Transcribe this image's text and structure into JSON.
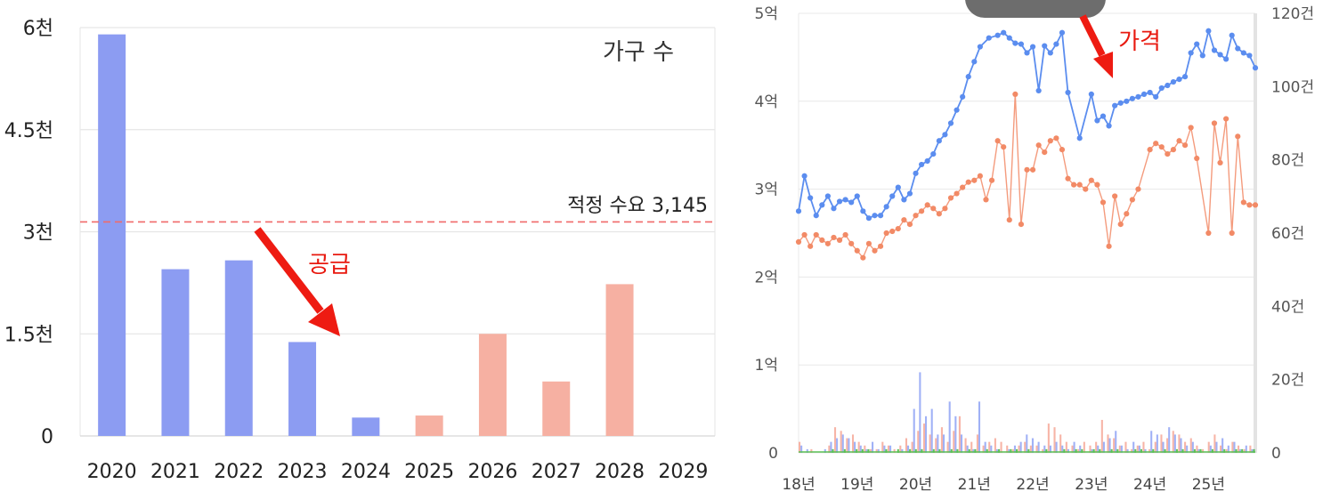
{
  "chart_data": [
    {
      "type": "bar",
      "title": "가구 수",
      "categories": [
        "2020",
        "2021",
        "2022",
        "2023",
        "2024",
        "2025",
        "2026",
        "2027",
        "2028",
        "2029"
      ],
      "values": [
        5900,
        2450,
        2580,
        1380,
        270,
        300,
        1500,
        800,
        2230,
        null
      ],
      "bar_colors": [
        "#8c9cf2",
        "#8c9cf2",
        "#8c9cf2",
        "#8c9cf2",
        "#8c9cf2",
        "#f6b0a2",
        "#f6b0a2",
        "#f6b0a2",
        "#f6b0a2",
        "#f6b0a2"
      ],
      "ylim": [
        0,
        6000
      ],
      "y_ticks": [
        {
          "value": 0,
          "label": "0"
        },
        {
          "value": 1500,
          "label": "1.5천"
        },
        {
          "value": 3000,
          "label": "3천"
        },
        {
          "value": 4500,
          "label": "4.5천"
        },
        {
          "value": 6000,
          "label": "6천"
        }
      ],
      "reference_line": {
        "value": 3145,
        "label": "적정 수요 3,145",
        "color": "#f06a6a"
      },
      "arrow_annotation": {
        "label": "공급",
        "color": "#e8190f"
      },
      "grid": true
    },
    {
      "type": "line",
      "x_ticks": [
        "18년",
        "19년",
        "20년",
        "21년",
        "22년",
        "23년",
        "24년",
        "25년"
      ],
      "y_left": {
        "ylim": [
          0,
          5
        ],
        "ticks": [
          {
            "value": 0,
            "label": "0"
          },
          {
            "value": 1,
            "label": "1억"
          },
          {
            "value": 2,
            "label": "2억"
          },
          {
            "value": 3,
            "label": "3억"
          },
          {
            "value": 4,
            "label": "4억"
          },
          {
            "value": 5,
            "label": "5억"
          }
        ]
      },
      "y_right": {
        "ylim": [
          0,
          120
        ],
        "ticks": [
          {
            "value": 0,
            "label": "0"
          },
          {
            "value": 20,
            "label": "20건"
          },
          {
            "value": 40,
            "label": "40건"
          },
          {
            "value": 60,
            "label": "60건"
          },
          {
            "value": 80,
            "label": "80건"
          },
          {
            "value": 100,
            "label": "100건"
          },
          {
            "value": 120,
            "label": "120건"
          }
        ]
      },
      "series": [
        {
          "color": "#5b8def",
          "axis": "left",
          "x": [
            2018.0,
            2018.1,
            2018.2,
            2018.3,
            2018.4,
            2018.5,
            2018.6,
            2018.7,
            2018.8,
            2018.9,
            2019.0,
            2019.1,
            2019.2,
            2019.3,
            2019.4,
            2019.5,
            2019.6,
            2019.7,
            2019.8,
            2019.9,
            2020.0,
            2020.1,
            2020.2,
            2020.3,
            2020.4,
            2020.5,
            2020.6,
            2020.7,
            2020.8,
            2020.9,
            2021.0,
            2021.1,
            2021.25,
            2021.4,
            2021.5,
            2021.6,
            2021.7,
            2021.8,
            2021.9,
            2022.0,
            2022.1,
            2022.2,
            2022.3,
            2022.4,
            2022.5,
            2022.6,
            2022.8,
            2023.0,
            2023.1,
            2023.2,
            2023.3,
            2023.4,
            2023.5,
            2023.6,
            2023.7,
            2023.8,
            2023.9,
            2024.0,
            2024.1,
            2024.2,
            2024.3,
            2024.4,
            2024.5,
            2024.6,
            2024.7,
            2024.8,
            2024.9,
            2025.0,
            2025.1,
            2025.2,
            2025.3,
            2025.4,
            2025.5,
            2025.6,
            2025.7,
            2025.8
          ],
          "values": [
            2.75,
            3.15,
            2.9,
            2.7,
            2.82,
            2.92,
            2.78,
            2.86,
            2.88,
            2.85,
            2.92,
            2.75,
            2.67,
            2.7,
            2.7,
            2.8,
            2.92,
            3.02,
            2.88,
            2.95,
            3.18,
            3.28,
            3.32,
            3.4,
            3.55,
            3.62,
            3.75,
            3.9,
            4.05,
            4.28,
            4.45,
            4.62,
            4.72,
            4.75,
            4.78,
            4.72,
            4.66,
            4.65,
            4.55,
            4.62,
            4.12,
            4.63,
            4.55,
            4.65,
            4.78,
            4.1,
            3.58,
            4.08,
            3.78,
            3.83,
            3.72,
            3.95,
            3.98,
            4.0,
            4.03,
            4.05,
            4.08,
            4.1,
            4.05,
            4.15,
            4.18,
            4.22,
            4.25,
            4.28,
            4.55,
            4.65,
            4.52,
            4.8,
            4.58,
            4.53,
            4.48,
            4.75,
            4.6,
            4.55,
            4.52,
            4.38
          ]
        },
        {
          "color": "#f28a66",
          "axis": "left",
          "x": [
            2018.0,
            2018.1,
            2018.2,
            2018.3,
            2018.4,
            2018.5,
            2018.6,
            2018.7,
            2018.8,
            2018.9,
            2019.0,
            2019.1,
            2019.2,
            2019.3,
            2019.4,
            2019.5,
            2019.6,
            2019.7,
            2019.8,
            2019.9,
            2020.0,
            2020.1,
            2020.2,
            2020.3,
            2020.4,
            2020.5,
            2020.6,
            2020.7,
            2020.8,
            2020.9,
            2021.0,
            2021.1,
            2021.2,
            2021.3,
            2021.4,
            2021.5,
            2021.6,
            2021.7,
            2021.8,
            2021.9,
            2022.0,
            2022.1,
            2022.2,
            2022.3,
            2022.4,
            2022.5,
            2022.6,
            2022.7,
            2022.8,
            2022.9,
            2023.0,
            2023.1,
            2023.2,
            2023.3,
            2023.4,
            2023.5,
            2023.6,
            2023.7,
            2023.8,
            2024.0,
            2024.1,
            2024.2,
            2024.3,
            2024.4,
            2024.5,
            2024.6,
            2024.7,
            2024.8,
            2025.0,
            2025.1,
            2025.2,
            2025.3,
            2025.4,
            2025.5,
            2025.6,
            2025.7,
            2025.8
          ],
          "values": [
            2.4,
            2.48,
            2.35,
            2.48,
            2.42,
            2.38,
            2.45,
            2.42,
            2.48,
            2.38,
            2.3,
            2.22,
            2.38,
            2.3,
            2.35,
            2.5,
            2.52,
            2.55,
            2.65,
            2.6,
            2.7,
            2.75,
            2.82,
            2.78,
            2.72,
            2.78,
            2.9,
            2.95,
            3.02,
            3.08,
            3.1,
            3.15,
            2.88,
            3.1,
            3.55,
            3.48,
            2.65,
            4.08,
            2.6,
            3.22,
            3.22,
            3.5,
            3.42,
            3.55,
            3.58,
            3.45,
            3.12,
            3.05,
            3.05,
            3.0,
            3.1,
            3.05,
            2.85,
            2.35,
            2.92,
            2.6,
            2.72,
            2.88,
            3.0,
            3.45,
            3.52,
            3.48,
            3.4,
            3.45,
            3.55,
            3.5,
            3.7,
            3.35,
            2.5,
            3.75,
            3.3,
            3.8,
            2.5,
            3.6,
            2.85,
            2.82,
            2.82
          ]
        }
      ],
      "volume_bars": {
        "axis": "right",
        "colors": [
          "#8fa3f4",
          "#f6a796",
          "#46b83f"
        ],
        "values_blue": [
          2,
          1,
          0,
          0,
          1,
          3,
          4,
          5,
          4,
          3,
          2,
          1,
          3,
          1,
          2,
          2,
          0,
          1,
          2,
          12,
          22,
          10,
          12,
          5,
          5,
          14,
          10,
          5,
          2,
          1,
          14,
          3,
          2,
          1,
          0,
          1,
          2,
          3,
          5,
          4,
          3,
          2,
          2,
          3,
          2,
          1,
          3,
          2,
          0,
          1,
          2,
          3,
          4,
          6,
          2,
          1,
          3,
          2,
          1,
          6,
          5,
          3,
          7,
          5,
          4,
          2,
          3,
          1,
          0,
          2,
          3,
          4,
          2,
          3,
          1,
          2,
          1
        ],
        "values_red": [
          3,
          0,
          1,
          0,
          0,
          2,
          7,
          6,
          4,
          5,
          3,
          2,
          1,
          1,
          3,
          2,
          1,
          2,
          4,
          3,
          6,
          8,
          5,
          4,
          7,
          3,
          6,
          10,
          4,
          3,
          5,
          2,
          3,
          4,
          3,
          2,
          1,
          2,
          3,
          2,
          2,
          1,
          8,
          7,
          5,
          3,
          2,
          1,
          3,
          2,
          3,
          9,
          5,
          4,
          2,
          3,
          1,
          2,
          3,
          1,
          3,
          5,
          4,
          6,
          5,
          3,
          4,
          2,
          1,
          3,
          5,
          2,
          1,
          3,
          2,
          1,
          2
        ],
        "values_green": [
          0,
          0,
          0,
          0,
          0,
          1,
          0,
          1,
          0,
          1,
          1,
          1,
          0,
          0,
          1,
          0,
          1,
          0,
          1,
          1,
          1,
          0,
          1,
          1,
          0,
          1,
          1,
          0,
          1,
          1,
          0,
          1,
          0,
          1,
          0,
          1,
          1,
          0,
          1,
          0,
          0,
          1,
          0,
          0,
          1,
          0,
          1,
          1,
          0,
          1,
          1,
          0,
          1,
          1,
          0,
          0,
          1,
          1,
          0,
          1,
          0,
          1,
          0,
          1,
          1,
          0,
          1,
          1,
          0,
          1,
          0,
          1,
          0,
          1,
          1,
          0,
          1
        ]
      },
      "annotations": [
        {
          "label": "가격",
          "color": "#e8190f"
        }
      ],
      "grid": true
    }
  ]
}
